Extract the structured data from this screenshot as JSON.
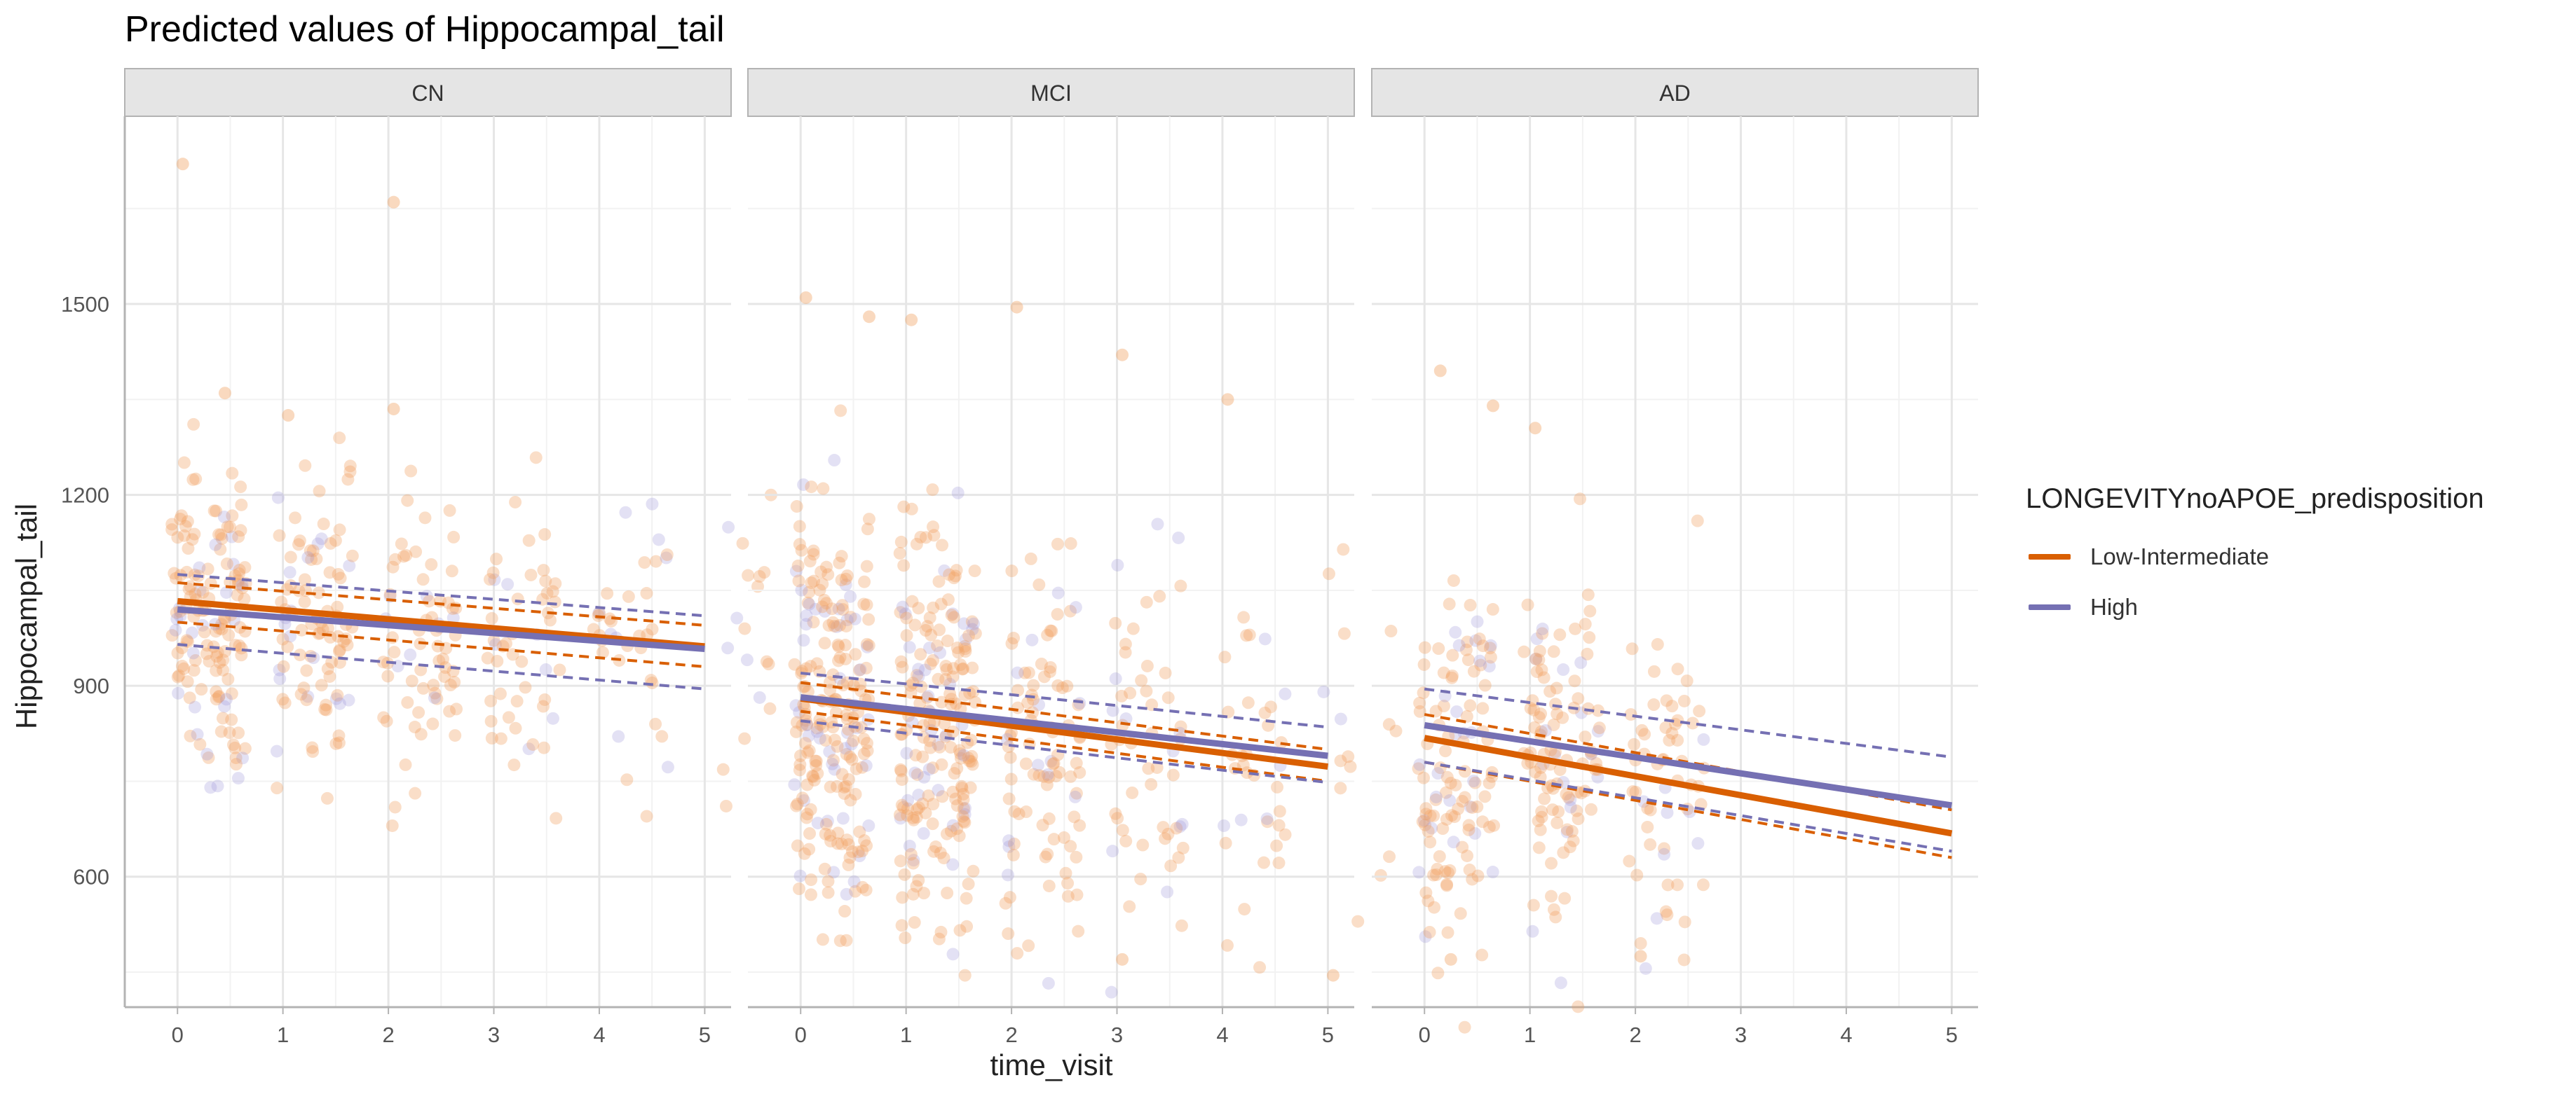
{
  "chart_data": {
    "type": "scatter",
    "title": "Predicted values of Hippocampal_tail",
    "xlabel": "time_visit",
    "ylabel": "Hippocampal_tail",
    "facets": [
      "CN",
      "MCI",
      "AD"
    ],
    "x_ticks": [
      0,
      1,
      2,
      3,
      4,
      5
    ],
    "y_ticks": [
      600,
      900,
      1200,
      1500
    ],
    "xlim": [
      -0.5,
      5.25
    ],
    "ylim": [
      395,
      1795
    ],
    "grid": true,
    "legend": {
      "title": "LONGEVITYnoAPOE_predisposition",
      "position": "right",
      "entries": [
        {
          "name": "Low-Intermediate",
          "color": "#d95f02"
        },
        {
          "name": "High",
          "color": "#7570b3"
        }
      ]
    },
    "series": [
      {
        "name": "Low-Intermediate",
        "color": "#d95f02",
        "fits": {
          "CN": {
            "y0": 1033,
            "y5": 962,
            "lo0": 1000,
            "lo5": 930,
            "hi0": 1062,
            "hi5": 995
          },
          "MCI": {
            "y0": 880,
            "y5": 773,
            "lo0": 860,
            "lo5": 750,
            "hi0": 905,
            "hi5": 800
          },
          "AD": {
            "y0": 818,
            "y5": 668,
            "lo0": 780,
            "lo5": 630,
            "hi0": 855,
            "hi5": 705
          }
        }
      },
      {
        "name": "High",
        "color": "#7570b3",
        "fits": {
          "CN": {
            "y0": 1020,
            "y5": 958,
            "lo0": 965,
            "lo5": 895,
            "hi0": 1075,
            "hi5": 1010
          },
          "MCI": {
            "y0": 882,
            "y5": 790,
            "lo0": 845,
            "lo5": 748,
            "hi0": 920,
            "hi5": 835
          },
          "AD": {
            "y0": 838,
            "y5": 712,
            "lo0": 780,
            "lo5": 640,
            "hi0": 895,
            "hi5": 788
          }
        }
      }
    ],
    "points": {
      "CN": {
        "center": 1010,
        "spread": 120,
        "counts": [
          150,
          100,
          70,
          50,
          35,
          18
        ],
        "slope": -14,
        "outliers": [
          [
            0,
            1720
          ],
          [
            2,
            1660
          ],
          [
            2,
            1335
          ],
          [
            0.4,
            1360
          ],
          [
            1,
            1325
          ]
        ]
      },
      "MCI": {
        "center": 860,
        "spread": 160,
        "counts": [
          230,
          210,
          100,
          55,
          35,
          15
        ],
        "slope": -20,
        "outliers": [
          [
            0,
            1510
          ],
          [
            2,
            1495
          ],
          [
            1,
            1475
          ],
          [
            0.6,
            1480
          ],
          [
            3,
            1420
          ],
          [
            4,
            1350
          ],
          [
            5,
            445
          ],
          [
            3,
            470
          ]
        ]
      },
      "AD": {
        "center": 790,
        "spread": 140,
        "counts": [
          120,
          110,
          60,
          0,
          0,
          0
        ],
        "slope": -25,
        "outliers": [
          [
            0.1,
            1395
          ],
          [
            0.6,
            1340
          ],
          [
            1,
            1305
          ],
          [
            0.2,
            470
          ],
          [
            2,
            475
          ]
        ]
      }
    }
  }
}
